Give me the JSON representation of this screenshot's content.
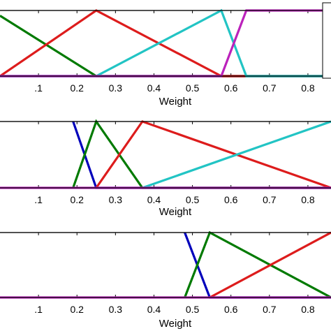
{
  "chart_data": [
    {
      "type": "line",
      "xlabel": "Weight",
      "xlim": [
        0.0,
        0.86
      ],
      "ylim": [
        0,
        1
      ],
      "xticks": [
        0.1,
        0.2,
        0.3,
        0.4,
        0.5,
        0.6,
        0.7,
        0.8
      ],
      "xtick_labels": [
        ".1",
        "0.2",
        "0.3",
        "0.4",
        "0.5",
        "0.6",
        "0.7",
        "0.8"
      ],
      "legend_box": "right, partially visible",
      "series": [
        {
          "color": "#0000bb",
          "x": [
            0.0,
            0.86
          ],
          "y": [
            0,
            0
          ]
        },
        {
          "color": "#007a00",
          "x": [
            0.0,
            0.25,
            0.86
          ],
          "y": [
            0.92,
            0,
            0
          ]
        },
        {
          "color": "#dd1c1c",
          "x": [
            0.0,
            0.25,
            0.575,
            0.86
          ],
          "y": [
            0,
            1,
            0,
            0
          ]
        },
        {
          "color": "#22c4c4",
          "x": [
            0.0,
            0.25,
            0.575,
            0.64,
            0.86
          ],
          "y": [
            0,
            0,
            1,
            0,
            0
          ]
        },
        {
          "color": "#bb22bb",
          "x": [
            0.0,
            0.575,
            0.64,
            0.86
          ],
          "y": [
            0,
            0,
            1,
            1
          ]
        }
      ]
    },
    {
      "type": "line",
      "xlabel": "Weight",
      "xlim": [
        0.0,
        0.86
      ],
      "ylim": [
        0,
        1
      ],
      "xticks": [
        0.1,
        0.2,
        0.3,
        0.4,
        0.5,
        0.6,
        0.7,
        0.8
      ],
      "xtick_labels": [
        ".1",
        "0.2",
        "0.3",
        "0.4",
        "0.5",
        "0.6",
        "0.7",
        "0.8"
      ],
      "series": [
        {
          "color": "#0000bb",
          "x": [
            0.19,
            0.25,
            0.86
          ],
          "y": [
            1,
            0,
            0
          ]
        },
        {
          "color": "#007a00",
          "x": [
            0.19,
            0.25,
            0.37,
            0.86
          ],
          "y": [
            0,
            1,
            0,
            0
          ]
        },
        {
          "color": "#dd1c1c",
          "x": [
            0.25,
            0.37,
            0.86
          ],
          "y": [
            0,
            1,
            0
          ]
        },
        {
          "color": "#22c4c4",
          "x": [
            0.37,
            0.86
          ],
          "y": [
            0,
            1
          ]
        },
        {
          "color": "#bb22bb",
          "x": [
            0.0,
            0.86
          ],
          "y": [
            0,
            0
          ]
        }
      ]
    },
    {
      "type": "line",
      "xlabel": "Weight",
      "xlim": [
        0.0,
        0.86
      ],
      "ylim": [
        0,
        1
      ],
      "xticks": [
        0.1,
        0.2,
        0.3,
        0.4,
        0.5,
        0.6,
        0.7,
        0.8
      ],
      "xtick_labels": [
        ".1",
        "0.2",
        "0.3",
        "0.4",
        "0.5",
        "0.6",
        "0.7",
        "0.8"
      ],
      "series": [
        {
          "color": "#0000bb",
          "x": [
            0.48,
            0.545,
            0.86
          ],
          "y": [
            1,
            0,
            0
          ]
        },
        {
          "color": "#007a00",
          "x": [
            0.48,
            0.545,
            0.86
          ],
          "y": [
            0,
            1,
            0
          ]
        },
        {
          "color": "#dd1c1c",
          "x": [
            0.545,
            0.86
          ],
          "y": [
            0,
            1
          ]
        },
        {
          "color": "#bb22bb",
          "x": [
            0.0,
            0.86
          ],
          "y": [
            0,
            0
          ]
        }
      ]
    }
  ]
}
